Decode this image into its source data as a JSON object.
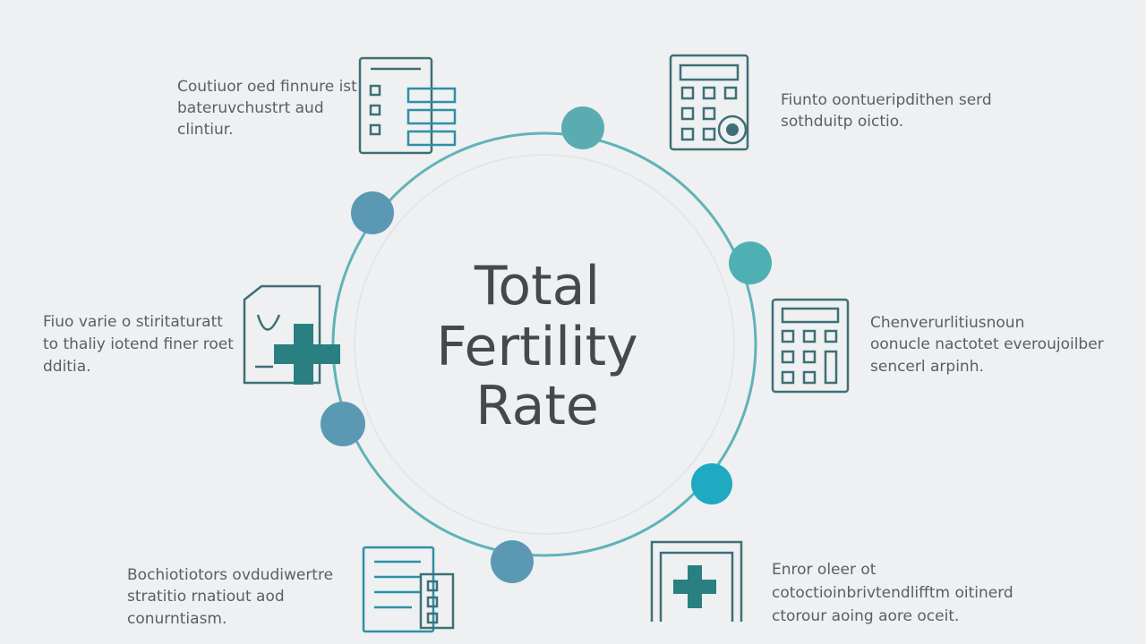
{
  "center": {
    "title_lines": [
      "Total",
      "Fertility",
      "Rate"
    ]
  },
  "blocks": [
    {
      "lines": [
        "Coutiuor oed finnure ist",
        "bateruvchustrt aud",
        "clintiur."
      ]
    },
    {
      "lines": [
        "Fiunto oontueripdithen serd",
        "sothduitp oictio."
      ]
    },
    {
      "lines": [
        "Fiuo varie o stiritaturatt",
        "to thaliy iotend finer roet",
        "dditia."
      ]
    },
    {
      "lines": [
        "Chenverurlitiusnoun",
        "oonucle nactotet everoujoilber",
        "sencerl arpinh."
      ]
    },
    {
      "lines": [
        "Bochiotiotors ovdudiwertre",
        "stratitio rnatiout aod",
        "conurntiasm."
      ]
    },
    {
      "lines": [
        "Enror oleer ot",
        "cotoctioinbrivtendlifftm oitinerd",
        "ctorour aoing aore oceit."
      ]
    }
  ]
}
